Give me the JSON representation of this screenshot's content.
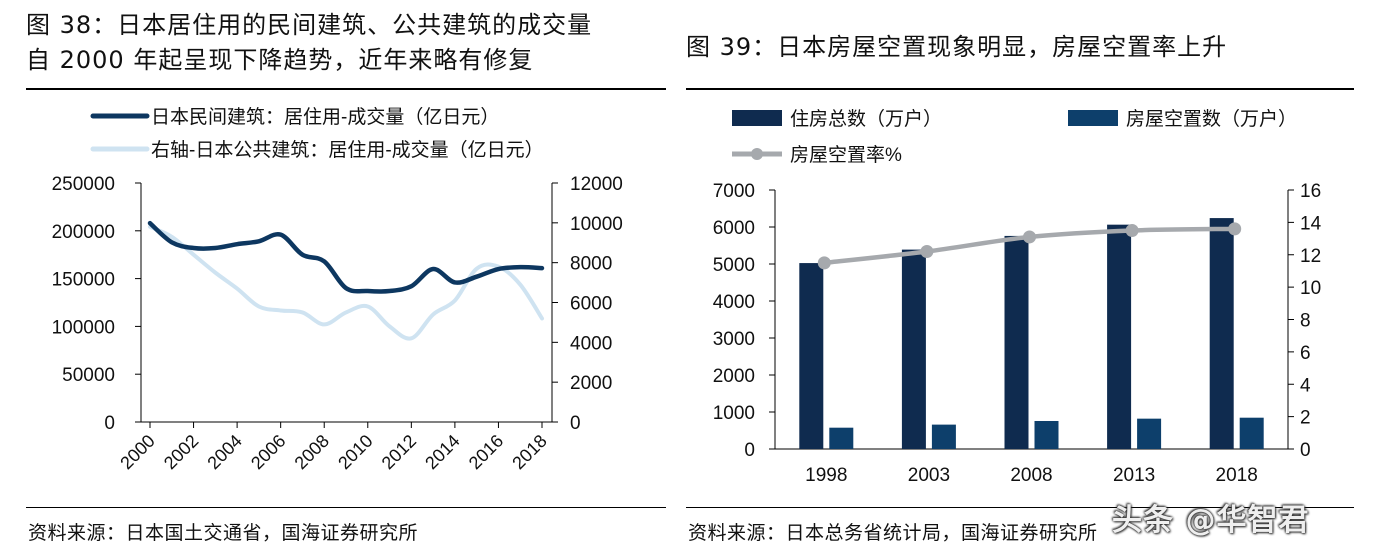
{
  "left_figure": {
    "title_line1": "图 38：日本居住用的民间建筑、公共建筑的成交量",
    "title_line2": "自 2000 年起呈现下降趋势，近年来略有修复",
    "source": "资料来源：日本国土交通省，国海证券研究所"
  },
  "right_figure": {
    "title": "图 39：日本房屋空置现象明显，房屋空置率上升",
    "source": "资料来源：日本总务省统计局，国海证券研究所"
  },
  "watermark": "头条 @华智君",
  "chart_data": [
    {
      "type": "line",
      "title": "",
      "legend": [
        "日本民间建筑：居住用-成交量（亿日元）",
        "右轴-日本公共建筑：居住用-成交量（亿日元）"
      ],
      "x": [
        2000,
        2001,
        2002,
        2003,
        2004,
        2005,
        2006,
        2007,
        2008,
        2009,
        2010,
        2011,
        2012,
        2013,
        2014,
        2015,
        2016,
        2017,
        2018
      ],
      "x_ticks": [
        "2000",
        "2002",
        "2004",
        "2006",
        "2008",
        "2010",
        "2012",
        "2014",
        "2016",
        "2018"
      ],
      "series": [
        {
          "name": "日本民间建筑：居住用-成交量（亿日元）",
          "axis": "left",
          "color": "#0d3760",
          "values": [
            208000,
            188000,
            182000,
            182000,
            186000,
            189000,
            196000,
            175000,
            168000,
            140000,
            137000,
            137000,
            142000,
            160000,
            146000,
            152000,
            160000,
            162000,
            161000
          ]
        },
        {
          "name": "右轴-日本公共建筑：居住用-成交量（亿日元）",
          "axis": "right",
          "color": "#cfe3f1",
          "values": [
            9800,
            9300,
            8400,
            7500,
            6700,
            5800,
            5600,
            5500,
            4900,
            5500,
            5800,
            4800,
            4200,
            5400,
            6100,
            7700,
            7800,
            6900,
            5200
          ]
        }
      ],
      "y_left": {
        "ylim": [
          0,
          250000
        ],
        "ticks": [
          "0",
          "50000",
          "100000",
          "150000",
          "200000",
          "250000"
        ]
      },
      "y_right": {
        "ylim": [
          0,
          12000
        ],
        "ticks": [
          "0",
          "2000",
          "4000",
          "6000",
          "8000",
          "10000",
          "12000"
        ]
      }
    },
    {
      "type": "bar",
      "title": "",
      "categories": [
        "1998",
        "2003",
        "2008",
        "2013",
        "2018"
      ],
      "legend": [
        "住房总数（万户）",
        "房屋空置数（万户）",
        "房屋空置率%"
      ],
      "series": [
        {
          "name": "住房总数（万户）",
          "kind": "bar",
          "axis": "left",
          "color": "#0f2b4f",
          "values": [
            5025,
            5389,
            5759,
            6063,
            6241
          ]
        },
        {
          "name": "房屋空置数（万户）",
          "kind": "bar",
          "axis": "left",
          "color": "#0d3f6b",
          "values": [
            576,
            659,
            757,
            820,
            846
          ]
        },
        {
          "name": "房屋空置率%",
          "kind": "line",
          "axis": "right",
          "color": "#a6a9ad",
          "values": [
            11.5,
            12.2,
            13.1,
            13.5,
            13.6
          ]
        }
      ],
      "y_left": {
        "ylim": [
          0,
          7000
        ],
        "ticks": [
          "0",
          "1000",
          "2000",
          "3000",
          "4000",
          "5000",
          "6000",
          "7000"
        ]
      },
      "y_right": {
        "ylim": [
          0,
          16
        ],
        "ticks": [
          "0",
          "2",
          "4",
          "6",
          "8",
          "10",
          "12",
          "14",
          "16"
        ]
      }
    }
  ]
}
